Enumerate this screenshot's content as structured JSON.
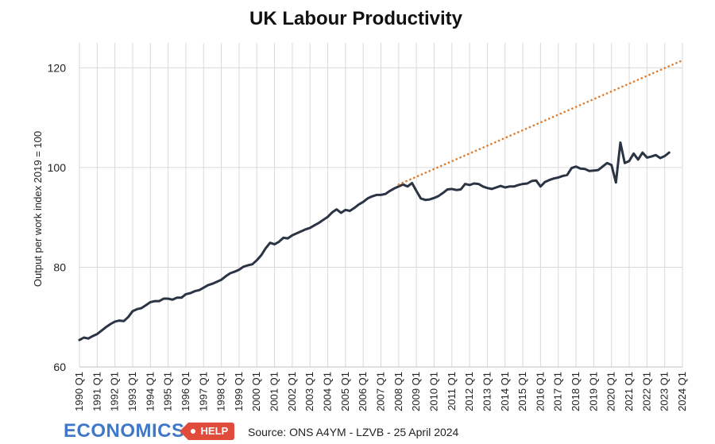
{
  "chart_data": {
    "type": "line",
    "title": "UK Labour Productivity",
    "ylabel": "Output per work index 2019 = 100",
    "xlabel": "",
    "ylim": [
      60,
      125
    ],
    "yticks": [
      60,
      80,
      100,
      120
    ],
    "grid": true,
    "x_tick_labels": [
      "1990 Q1",
      "1991 Q1",
      "1992 Q1",
      "1993 Q1",
      "1994 Q1",
      "1995 Q1",
      "1996 Q1",
      "1997 Q1",
      "1998 Q1",
      "1999 Q1",
      "2000 Q1",
      "2001 Q1",
      "2002 Q1",
      "2003 Q1",
      "2004 Q1",
      "2005 Q1",
      "2006 Q1",
      "2007 Q1",
      "2008 Q1",
      "2009 Q1",
      "2010 Q1",
      "2011 Q1",
      "2012 Q1",
      "2013 Q1",
      "2014 Q1",
      "2015 Q1",
      "2016 Q1",
      "2017 Q1",
      "2018 Q1",
      "2019 Q1",
      "2020 Q1",
      "2021 Q1",
      "2022 Q1",
      "2023 Q1",
      "2024 Q1"
    ],
    "start_period": "1990 Q1",
    "series": [
      {
        "color": "#2b3444",
        "style": "solid",
        "values": [
          65.4,
          65.9,
          65.7,
          66.2,
          66.6,
          67.3,
          68.0,
          68.6,
          69.1,
          69.3,
          69.2,
          70.0,
          71.2,
          71.6,
          71.8,
          72.4,
          73.0,
          73.2,
          73.2,
          73.7,
          73.7,
          73.5,
          73.9,
          73.9,
          74.6,
          74.8,
          75.2,
          75.4,
          75.9,
          76.4,
          76.7,
          77.1,
          77.5,
          78.2,
          78.8,
          79.1,
          79.5,
          80.1,
          80.4,
          80.6,
          81.4,
          82.4,
          83.8,
          84.9,
          84.6,
          85.1,
          85.9,
          85.8,
          86.4,
          86.8,
          87.2,
          87.6,
          87.9,
          88.4,
          88.9,
          89.5,
          90.1,
          91.0,
          91.6,
          90.9,
          91.5,
          91.3,
          91.9,
          92.6,
          93.1,
          93.8,
          94.2,
          94.5,
          94.5,
          94.7,
          95.3,
          95.8,
          96.2,
          96.6,
          96.2,
          96.9,
          95.3,
          93.8,
          93.5,
          93.6,
          93.9,
          94.3,
          94.9,
          95.6,
          95.7,
          95.5,
          95.6,
          96.7,
          96.5,
          96.8,
          96.7,
          96.2,
          95.9,
          95.7,
          96.0,
          96.3,
          96.0,
          96.2,
          96.2,
          96.5,
          96.7,
          96.8,
          97.3,
          97.4,
          96.2,
          97.1,
          97.5,
          97.8,
          98.0,
          98.3,
          98.5,
          99.9,
          100.2,
          99.8,
          99.7,
          99.3,
          99.4,
          99.5,
          100.2,
          100.9,
          100.5,
          97.0,
          105.0,
          100.9,
          101.3,
          102.8,
          101.6,
          103.0,
          102.0,
          102.2,
          102.5,
          101.9,
          102.3,
          103.0
        ]
      },
      {
        "color": "#e07b29",
        "style": "dotted",
        "start_period": "2008 Q1",
        "end_period": "2024 Q1",
        "values": [
          96.6,
          121.5
        ]
      }
    ],
    "source": "Source: ONS A4YM - LZVB - 25 April 2024"
  },
  "logo": {
    "main_text": "ECONOMICS",
    "tag_text": "HELP",
    "main_color": "#3f78c8",
    "tag_color": "#e04b3c"
  }
}
